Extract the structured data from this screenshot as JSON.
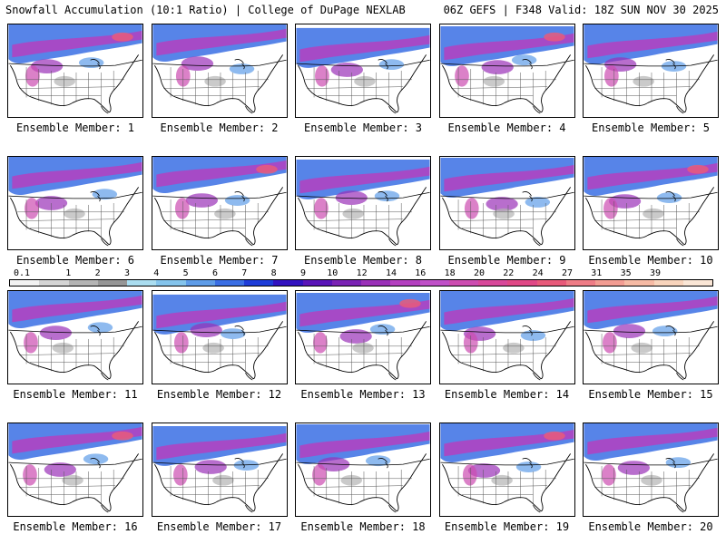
{
  "header": {
    "title_left": "Snowfall Accumulation (10:1 Ratio) | College of DuPage NEXLAB",
    "title_right": "06Z GEFS | F348 Valid: 18Z SUN NOV 30 2025"
  },
  "panels": [
    {
      "label": "Ensemble Member: 1"
    },
    {
      "label": "Ensemble Member: 2"
    },
    {
      "label": "Ensemble Member: 3"
    },
    {
      "label": "Ensemble Member: 4"
    },
    {
      "label": "Ensemble Member: 5"
    },
    {
      "label": "Ensemble Member: 6"
    },
    {
      "label": "Ensemble Member: 7"
    },
    {
      "label": "Ensemble Member: 8"
    },
    {
      "label": "Ensemble Member: 9"
    },
    {
      "label": "Ensemble Member: 10"
    },
    {
      "label": "Ensemble Member: 11"
    },
    {
      "label": "Ensemble Member: 12"
    },
    {
      "label": "Ensemble Member: 13"
    },
    {
      "label": "Ensemble Member: 14"
    },
    {
      "label": "Ensemble Member: 15"
    },
    {
      "label": "Ensemble Member: 16"
    },
    {
      "label": "Ensemble Member: 17"
    },
    {
      "label": "Ensemble Member: 18"
    },
    {
      "label": "Ensemble Member: 19"
    },
    {
      "label": "Ensemble Member: 20"
    }
  ],
  "colorbar": {
    "labels": [
      "0.1",
      "1",
      "2",
      "3",
      "4",
      "5",
      "6",
      "7",
      "8",
      "9",
      "10",
      "12",
      "14",
      "16",
      "18",
      "20",
      "22",
      "24",
      "27",
      "31",
      "35",
      "39"
    ],
    "colors": [
      "#f2f2f2",
      "#d4d4d4",
      "#b4b4b4",
      "#969696",
      "#aaddf0",
      "#84c4ec",
      "#5e9ce8",
      "#3a6ee4",
      "#1e3cd8",
      "#3212c0",
      "#5a14b8",
      "#7a22b4",
      "#9a30b8",
      "#b440c0",
      "#c050c8",
      "#cc4cb0",
      "#d8489a",
      "#e04886",
      "#e85a7a",
      "#ee7c86",
      "#f29c92",
      "#f6baa4",
      "#f8d4bc",
      "#fae6d6"
    ]
  }
}
